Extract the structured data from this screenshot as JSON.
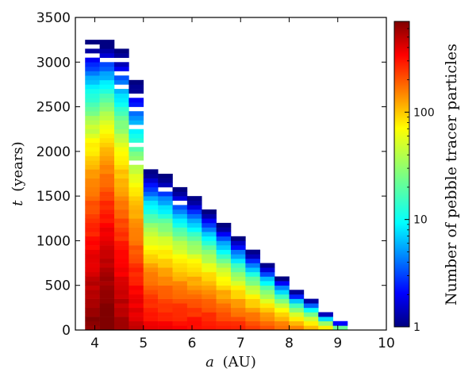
{
  "chart_data": {
    "type": "heatmap",
    "title": "",
    "xlabel": "a (AU)",
    "xlabel_var": "a",
    "xlabel_unit": "(AU)",
    "ylabel": "t (years)",
    "ylabel_var": "t",
    "ylabel_unit": "(years)",
    "xlim": [
      3.6,
      10.0
    ],
    "ylim": [
      0,
      3500
    ],
    "xticks": [
      4,
      5,
      6,
      7,
      8,
      9,
      10
    ],
    "yticks": [
      0,
      500,
      1000,
      1500,
      2000,
      2500,
      3000,
      3500
    ],
    "bin_width_au": 0.3,
    "bin_height_yr": 50,
    "columns": [
      {
        "a_start": 3.8,
        "t_max": 3250,
        "peak": 700,
        "top_gaps": [
          3050,
          3150
        ]
      },
      {
        "a_start": 4.1,
        "t_max": 3250,
        "peak": 900,
        "top_gaps": [
          3000
        ]
      },
      {
        "a_start": 4.4,
        "t_max": 3150,
        "peak": 600,
        "top_gaps": [
          2700,
          2850,
          3000
        ]
      },
      {
        "a_start": 4.7,
        "t_max": 2800,
        "peak": 450,
        "top_gaps": [
          1850,
          2050,
          2250,
          2450,
          2600
        ]
      },
      {
        "a_start": 5.0,
        "t_max": 1800,
        "peak": 350,
        "top_gaps": []
      },
      {
        "a_start": 5.3,
        "t_max": 1750,
        "peak": 330,
        "top_gaps": [
          1550
        ]
      },
      {
        "a_start": 5.6,
        "t_max": 1600,
        "peak": 320,
        "top_gaps": [
          1400
        ]
      },
      {
        "a_start": 5.9,
        "t_max": 1500,
        "peak": 310,
        "top_gaps": []
      },
      {
        "a_start": 6.2,
        "t_max": 1350,
        "peak": 300,
        "top_gaps": []
      },
      {
        "a_start": 6.5,
        "t_max": 1200,
        "peak": 280,
        "top_gaps": []
      },
      {
        "a_start": 6.8,
        "t_max": 1050,
        "peak": 250,
        "top_gaps": []
      },
      {
        "a_start": 7.1,
        "t_max": 900,
        "peak": 220,
        "top_gaps": []
      },
      {
        "a_start": 7.4,
        "t_max": 750,
        "peak": 200,
        "top_gaps": []
      },
      {
        "a_start": 7.7,
        "t_max": 600,
        "peak": 180,
        "top_gaps": []
      },
      {
        "a_start": 8.0,
        "t_max": 450,
        "peak": 150,
        "top_gaps": []
      },
      {
        "a_start": 8.3,
        "t_max": 350,
        "peak": 120,
        "top_gaps": []
      },
      {
        "a_start": 8.6,
        "t_max": 200,
        "peak": 90,
        "top_gaps": []
      },
      {
        "a_start": 8.9,
        "t_max": 100,
        "peak": 40,
        "top_gaps": []
      }
    ],
    "colorbar": {
      "label": "Number of pebble tracer particles",
      "scale": "log",
      "min": 1,
      "max": 700,
      "ticks": [
        1,
        10,
        100
      ],
      "tick_labels": [
        "1",
        "10",
        "100"
      ],
      "colormap": "jet"
    }
  }
}
